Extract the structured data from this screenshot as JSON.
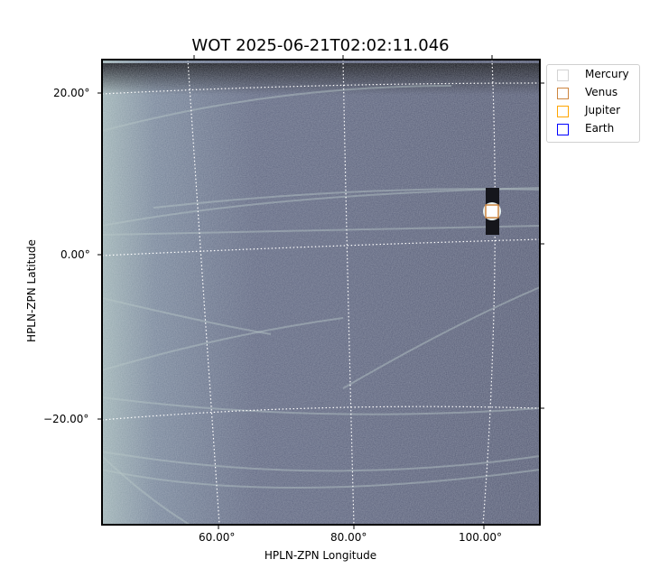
{
  "chart_data": {
    "type": "heatmap",
    "title": "WOT 2025-06-21T02:02:11.046",
    "xlabel": "HPLN-ZPN Longitude",
    "ylabel": "HPLN-ZPN Latitude",
    "x_ticks": [
      "60.00°",
      "80.00°",
      "100.00°"
    ],
    "y_ticks": [
      "20.00°",
      "0.00°",
      "−20.00°"
    ],
    "colormap": "bone",
    "grid": "dotted white coordinate grid",
    "legend_position": "outside-top-right",
    "legend": [
      {
        "name": "Mercury",
        "color": "#d3d3d3"
      },
      {
        "name": "Venus",
        "color": "#cd853f"
      },
      {
        "name": "Jupiter",
        "color": "#ffa500"
      },
      {
        "name": "Earth",
        "color": "#0000ff"
      }
    ],
    "markers": [
      {
        "name": "Venus",
        "lon": 101,
        "lat": 5.2
      }
    ]
  }
}
